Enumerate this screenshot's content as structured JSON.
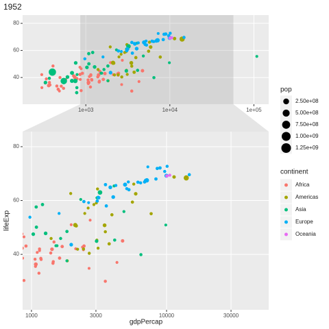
{
  "chart_data": {
    "type": "scatter",
    "title": "1952",
    "x_label": "gdpPercap",
    "y_label": "lifeExp",
    "log_x": true,
    "grid": true,
    "xlim": [
      177,
      150000
    ],
    "xticks": [
      {
        "value": 1000,
        "label": "1e+03"
      },
      {
        "value": 10000,
        "label": "1e+04"
      },
      {
        "value": 100000,
        "label": "1e+05"
      }
    ],
    "ylim": [
      20.3,
      86.1
    ],
    "yticks": [
      40,
      60,
      80
    ],
    "zoom": {
      "xlim": [
        860,
        57000
      ],
      "xticks": [
        1000,
        3000,
        10000,
        30000
      ],
      "ylim": [
        19.4,
        85.6
      ],
      "yticks": [
        40,
        60,
        80
      ]
    },
    "size_legend": {
      "title": "pop",
      "breaks": [
        {
          "value": 250000000,
          "label": "2.50e+08"
        },
        {
          "value": 500000000,
          "label": "5.00e+08"
        },
        {
          "value": 750000000,
          "label": "7.50e+08"
        },
        {
          "value": 1000000000,
          "label": "1.00e+09"
        },
        {
          "value": 1250000000,
          "label": "1.25e+09"
        }
      ]
    },
    "color_legend_title": "continent",
    "series": [
      {
        "name": "Africa",
        "color": "#F8766D",
        "x": [
          2449,
          3521,
          1063,
          851,
          543,
          339,
          1173,
          1071,
          1179,
          1103,
          781,
          2126,
          1389,
          2670,
          1419,
          376,
          329,
          362,
          4293,
          485,
          911,
          510,
          300,
          854,
          299,
          576,
          2388,
          1443,
          369,
          452,
          743,
          1968,
          1688,
          469,
          2424,
          761,
          1077,
          2719,
          493,
          880,
          1450,
          880,
          1136,
          4725,
          1615,
          1148,
          717,
          859,
          1468,
          735,
          1147,
          407
        ],
        "values": [
          43.1,
          30.0,
          38.2,
          47.6,
          32.0,
          39.0,
          38.5,
          35.5,
          38.1,
          40.7,
          39.1,
          42.1,
          40.5,
          34.8,
          41.9,
          34.5,
          35.9,
          34.1,
          37.0,
          30.0,
          43.1,
          33.6,
          32.5,
          42.3,
          42.1,
          38.5,
          42.7,
          36.7,
          36.3,
          33.7,
          40.5,
          51.0,
          42.9,
          31.3,
          41.7,
          37.4,
          36.3,
          52.7,
          40.0,
          46.5,
          37.3,
          30.3,
          33.0,
          45.0,
          38.6,
          41.4,
          41.2,
          38.6,
          44.6,
          40.0,
          42.0,
          48.5
        ],
        "sizes": [
          9300000,
          4200000,
          1700000,
          440000,
          4500000,
          2400000,
          5000000,
          1300000,
          2700000,
          150000,
          14100000,
          850000,
          2980000,
          60000,
          22200000,
          220000,
          1400000,
          20900000,
          420000,
          280000,
          5600000,
          2700000,
          580000,
          6500000,
          750000,
          860000,
          1000000,
          4800000,
          2900000,
          3800000,
          1000000,
          520000,
          9900000,
          6400000,
          490000,
          3400000,
          33100000,
          260000,
          2500000,
          60000,
          2760000,
          2100000,
          2500000,
          14300000,
          8500000,
          290000,
          8300000,
          1200000,
          3600000,
          5800000,
          2700000,
          3100000
        ]
      },
      {
        "name": "Americas",
        "color": "#A3A500",
        "x": [
          5911,
          2677,
          2109,
          11367,
          3940,
          2144,
          2628,
          5587,
          1398,
          3522,
          3048,
          2428,
          1840,
          2195,
          2899,
          3478,
          3112,
          2480,
          1952,
          3759,
          3082,
          3023,
          13990,
          5717,
          7690
        ],
        "values": [
          62.5,
          40.4,
          50.9,
          68.75,
          54.7,
          50.6,
          57.2,
          59.4,
          45.9,
          48.4,
          45.3,
          42.0,
          37.6,
          41.9,
          58.5,
          50.8,
          42.3,
          55.2,
          62.6,
          43.9,
          64.3,
          59.1,
          68.4,
          66.1,
          55.1
        ],
        "sizes": [
          17900000,
          2900000,
          56600000,
          14800000,
          6400000,
          12400000,
          930000,
          6000000,
          2500000,
          3500000,
          2000000,
          3100000,
          3200000,
          1500000,
          1400000,
          30100000,
          1200000,
          940000,
          1600000,
          8000000,
          2200000,
          660000,
          157600000,
          2250000,
          5400000
        ]
      },
      {
        "name": "Asia",
        "color": "#00BF7D",
        "x": [
          779,
          9867,
          684,
          368,
          400,
          3054,
          547,
          750,
          3035,
          4130,
          4087,
          3217,
          1547,
          1088,
          1031,
          108382,
          4835,
          1831,
          787,
          331,
          546,
          1828,
          685,
          1273,
          6460,
          2316,
          1084,
          1644,
          1207,
          758,
          605,
          1516,
          782
        ],
        "values": [
          28.8,
          50.9,
          37.5,
          39.4,
          44.0,
          61.0,
          37.4,
          37.5,
          44.9,
          45.3,
          65.4,
          63.0,
          43.2,
          50.1,
          47.5,
          55.6,
          55.9,
          48.5,
          42.2,
          36.3,
          36.2,
          37.6,
          43.4,
          47.8,
          39.9,
          60.4,
          57.6,
          45.9,
          58.5,
          50.8,
          40.4,
          43.2,
          32.5
        ],
        "sizes": [
          8400000,
          120000,
          46900000,
          4700000,
          556300000,
          2100000,
          372000000,
          82100000,
          17300000,
          5400000,
          1600000,
          86500000,
          600000,
          8900000,
          20900000,
          160000,
          1400000,
          6700000,
          800000,
          20100000,
          9200000,
          500000,
          41300000,
          22400000,
          4000000,
          1100000,
          7980000,
          3700000,
          8600000,
          21300000,
          26200000,
          1000000,
          4960000
        ]
      },
      {
        "name": "Europe",
        "color": "#00B0F6",
        "x": [
          1601,
          6137,
          8343,
          974,
          2444,
          3119,
          6876,
          9692,
          6425,
          7030,
          7144,
          3531,
          5264,
          7268,
          5211,
          4931,
          2648,
          8942,
          10095,
          4029,
          3068,
          3145,
          3581,
          5074,
          4215,
          3834,
          8528,
          14734,
          1969,
          9980
        ],
        "values": [
          55.2,
          66.8,
          68.0,
          53.8,
          59.6,
          61.2,
          66.9,
          70.8,
          66.55,
          67.4,
          67.5,
          65.9,
          64.0,
          72.5,
          66.9,
          65.9,
          59.2,
          72.1,
          72.7,
          61.3,
          59.8,
          61.05,
          58.0,
          64.4,
          65.6,
          64.9,
          71.9,
          69.6,
          43.6,
          69.2
        ],
        "sizes": [
          1300000,
          6900000,
          8700000,
          2800000,
          7300000,
          3900000,
          9100000,
          4300000,
          4100000,
          42500000,
          69100000,
          7700000,
          9500000,
          150000,
          2950000,
          47700000,
          410000,
          10400000,
          3300000,
          25700000,
          8500000,
          16600000,
          6900000,
          3600000,
          1500000,
          28500000,
          7100000,
          4800000,
          22200000,
          50400000
        ]
      },
      {
        "name": "Oceania",
        "color": "#E76BF3",
        "x": [
          10040,
          10557
        ],
        "values": [
          69.1,
          69.4
        ],
        "sizes": [
          8700000,
          1990000
        ]
      }
    ]
  }
}
